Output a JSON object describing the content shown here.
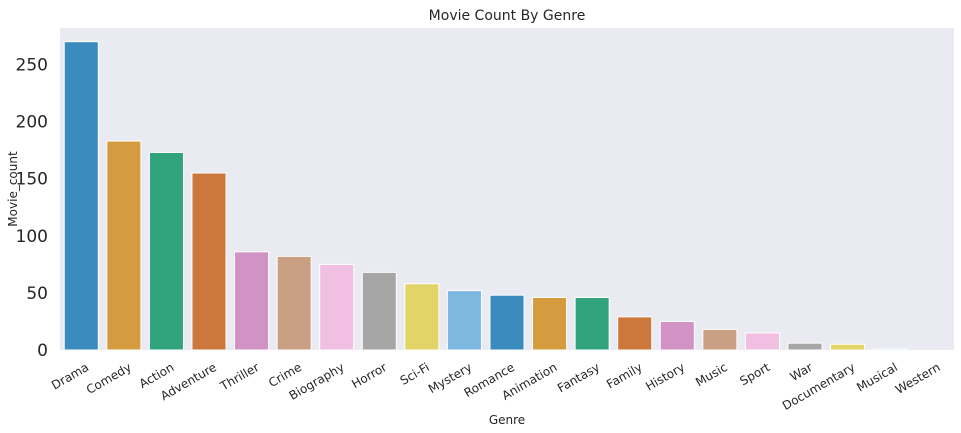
{
  "chart_data": {
    "type": "bar",
    "title": "Movie Count By Genre",
    "xlabel": "Genre",
    "ylabel": "Movie_count",
    "categories": [
      "Drama",
      "Comedy",
      "Action",
      "Adventure",
      "Thriller",
      "Crime",
      "Biography",
      "Horror",
      "Sci-Fi",
      "Mystery",
      "Romance",
      "Animation",
      "Fantasy",
      "Family",
      "History",
      "Music",
      "Sport",
      "War",
      "Documentary",
      "Musical",
      "Western"
    ],
    "values": [
      270,
      183,
      173,
      155,
      86,
      82,
      75,
      68,
      58,
      52,
      48,
      46,
      46,
      29,
      25,
      18,
      15,
      6,
      5,
      1,
      0
    ],
    "colors": [
      "#3b8bbf",
      "#d49c3e",
      "#31a47e",
      "#cc773c",
      "#d193c3",
      "#c9a084",
      "#f1bfe2",
      "#a6a6a6",
      "#e2d466",
      "#7db8e0",
      "#3b8bbf",
      "#d49c3e",
      "#31a47e",
      "#cc773c",
      "#d193c3",
      "#c9a084",
      "#f1bfe2",
      "#a6a6a6",
      "#e2d466",
      "#7db8e0",
      "#3b8bbf"
    ],
    "ylim": [
      0,
      282
    ],
    "yticks": [
      0,
      50,
      100,
      150,
      200,
      250
    ],
    "plot_background": "#eaeaf2",
    "grid": false,
    "legend": "none"
  }
}
